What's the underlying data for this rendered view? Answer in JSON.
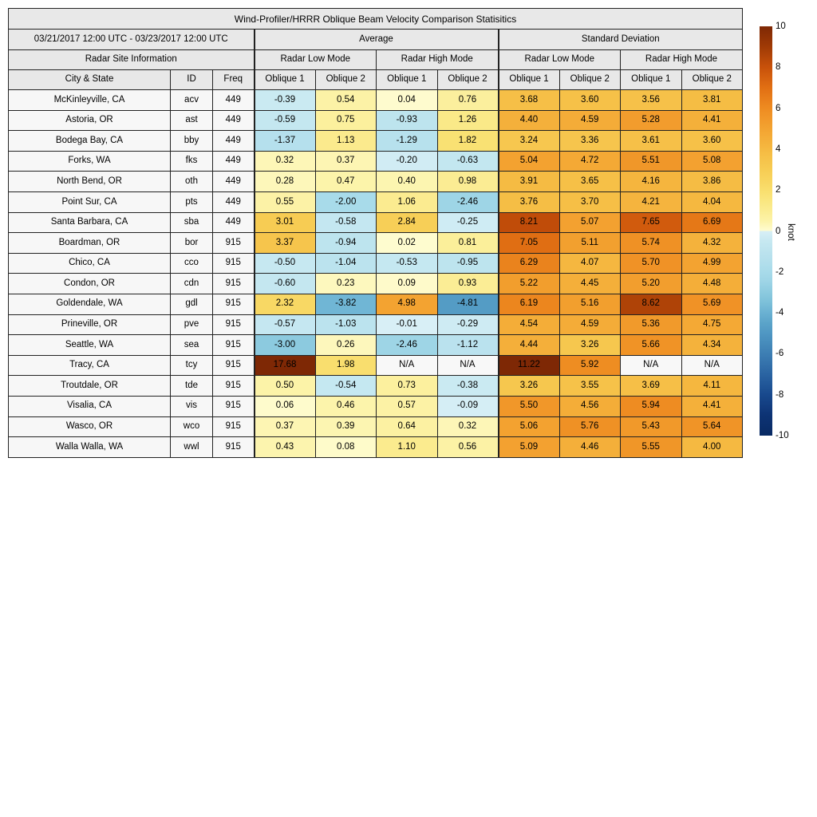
{
  "figure": {
    "title": "Wind-Profiler/HRRR Oblique Beam Velocity Comparison Statisitics",
    "date_range": "03/21/2017 12:00 UTC - 03/23/2017 12:00 UTC",
    "group_headers": {
      "average": "Average",
      "std_dev": "Standard Deviation",
      "site_info": "Radar Site Information",
      "low_mode": "Radar Low Mode",
      "high_mode": "Radar High Mode"
    },
    "column_headers": {
      "city": "City & State",
      "id": "ID",
      "freq": "Freq",
      "oblique1": "Oblique 1",
      "oblique2": "Oblique 2"
    }
  },
  "chart_data": {
    "type": "heatmap-table",
    "title": "Wind-Profiler/HRRR Oblique Beam Velocity Comparison Statisitics",
    "value_unit": "knot",
    "columns": [
      "Average Radar Low Mode Oblique 1",
      "Average Radar Low Mode Oblique 2",
      "Average Radar High Mode Oblique 1",
      "Average Radar High Mode Oblique 2",
      "Std Dev Radar Low Mode Oblique 1",
      "Std Dev Radar Low Mode Oblique 2",
      "Std Dev Radar High Mode Oblique 1",
      "Std Dev Radar High Mode Oblique 2"
    ],
    "na_label": "N/A",
    "rows": [
      {
        "city": "McKinleyville, CA",
        "id": "acv",
        "freq": "449",
        "values": [
          "-0.39",
          "0.54",
          "0.04",
          "0.76",
          "3.68",
          "3.60",
          "3.56",
          "3.81"
        ]
      },
      {
        "city": "Astoria, OR",
        "id": "ast",
        "freq": "449",
        "values": [
          "-0.59",
          "0.75",
          "-0.93",
          "1.26",
          "4.40",
          "4.59",
          "5.28",
          "4.41"
        ]
      },
      {
        "city": "Bodega Bay, CA",
        "id": "bby",
        "freq": "449",
        "values": [
          "-1.37",
          "1.13",
          "-1.29",
          "1.82",
          "3.24",
          "3.36",
          "3.61",
          "3.60"
        ]
      },
      {
        "city": "Forks, WA",
        "id": "fks",
        "freq": "449",
        "values": [
          "0.32",
          "0.37",
          "-0.20",
          "-0.63",
          "5.04",
          "4.72",
          "5.51",
          "5.08"
        ]
      },
      {
        "city": "North Bend, OR",
        "id": "oth",
        "freq": "449",
        "values": [
          "0.28",
          "0.47",
          "0.40",
          "0.98",
          "3.91",
          "3.65",
          "4.16",
          "3.86"
        ]
      },
      {
        "city": "Point Sur, CA",
        "id": "pts",
        "freq": "449",
        "values": [
          "0.55",
          "-2.00",
          "1.06",
          "-2.46",
          "3.76",
          "3.70",
          "4.21",
          "4.04"
        ]
      },
      {
        "city": "Santa Barbara, CA",
        "id": "sba",
        "freq": "449",
        "values": [
          "3.01",
          "-0.58",
          "2.84",
          "-0.25",
          "8.21",
          "5.07",
          "7.65",
          "6.69"
        ]
      },
      {
        "city": "Boardman, OR",
        "id": "bor",
        "freq": "915",
        "values": [
          "3.37",
          "-0.94",
          "0.02",
          "0.81",
          "7.05",
          "5.11",
          "5.74",
          "4.32"
        ]
      },
      {
        "city": "Chico, CA",
        "id": "cco",
        "freq": "915",
        "values": [
          "-0.50",
          "-1.04",
          "-0.53",
          "-0.95",
          "6.29",
          "4.07",
          "5.70",
          "4.99"
        ]
      },
      {
        "city": "Condon, OR",
        "id": "cdn",
        "freq": "915",
        "values": [
          "-0.60",
          "0.23",
          "0.09",
          "0.93",
          "5.22",
          "4.45",
          "5.20",
          "4.48"
        ]
      },
      {
        "city": "Goldendale, WA",
        "id": "gdl",
        "freq": "915",
        "values": [
          "2.32",
          "-3.82",
          "4.98",
          "-4.81",
          "6.19",
          "5.16",
          "8.62",
          "5.69"
        ]
      },
      {
        "city": "Prineville, OR",
        "id": "pve",
        "freq": "915",
        "values": [
          "-0.57",
          "-1.03",
          "-0.01",
          "-0.29",
          "4.54",
          "4.59",
          "5.36",
          "4.75"
        ]
      },
      {
        "city": "Seattle, WA",
        "id": "sea",
        "freq": "915",
        "values": [
          "-3.00",
          "0.26",
          "-2.46",
          "-1.12",
          "4.44",
          "3.26",
          "5.66",
          "4.34"
        ]
      },
      {
        "city": "Tracy, CA",
        "id": "tcy",
        "freq": "915",
        "values": [
          "17.68",
          "1.98",
          "N/A",
          "N/A",
          "11.22",
          "5.92",
          "N/A",
          "N/A"
        ]
      },
      {
        "city": "Troutdale, OR",
        "id": "tde",
        "freq": "915",
        "values": [
          "0.50",
          "-0.54",
          "0.73",
          "-0.38",
          "3.26",
          "3.55",
          "3.69",
          "4.11"
        ]
      },
      {
        "city": "Visalia, CA",
        "id": "vis",
        "freq": "915",
        "values": [
          "0.06",
          "0.46",
          "0.57",
          "-0.09",
          "5.50",
          "4.56",
          "5.94",
          "4.41"
        ]
      },
      {
        "city": "Wasco, OR",
        "id": "wco",
        "freq": "915",
        "values": [
          "0.37",
          "0.39",
          "0.64",
          "0.32",
          "5.06",
          "5.76",
          "5.43",
          "5.64"
        ]
      },
      {
        "city": "Walla Walla, WA",
        "id": "wwl",
        "freq": "915",
        "values": [
          "0.43",
          "0.08",
          "1.10",
          "0.56",
          "5.09",
          "4.46",
          "5.55",
          "4.00"
        ]
      }
    ],
    "colorbar": {
      "label": "knot",
      "ticks": [
        "10",
        "8",
        "6",
        "4",
        "2",
        "0",
        "-2",
        "-4",
        "-6",
        "-8",
        "-10"
      ],
      "range": [
        -10,
        10
      ]
    }
  },
  "colormap": {
    "na": "#f8f8f8",
    "positive": [
      [
        0,
        "#fefcd1"
      ],
      [
        0.5,
        "#fcf3a8"
      ],
      [
        1,
        "#fbec92"
      ],
      [
        1.5,
        "#fae67f"
      ],
      [
        2,
        "#f9de6d"
      ],
      [
        2.5,
        "#f8d55f"
      ],
      [
        3,
        "#f7cc53"
      ],
      [
        4,
        "#f5b941"
      ],
      [
        5,
        "#f3a331"
      ],
      [
        6,
        "#ee8b21"
      ],
      [
        7,
        "#e16f13"
      ],
      [
        8,
        "#c8510a"
      ],
      [
        9,
        "#a03a05"
      ],
      [
        10,
        "#7e2805"
      ]
    ],
    "negative": [
      [
        0,
        "#d8eff6"
      ],
      [
        0.5,
        "#c6e8f1"
      ],
      [
        1,
        "#bce3ee"
      ],
      [
        1.5,
        "#b3dfec"
      ],
      [
        2,
        "#a8dbea"
      ],
      [
        2.5,
        "#9dd4e6"
      ],
      [
        3,
        "#8ccadf"
      ],
      [
        3.5,
        "#7cc0d9"
      ],
      [
        4,
        "#6ab1d2"
      ],
      [
        4.5,
        "#5ba4c9"
      ],
      [
        5,
        "#4f97c3"
      ],
      [
        6,
        "#3d7eb3"
      ],
      [
        7,
        "#2a64a2"
      ],
      [
        8,
        "#18498d"
      ],
      [
        9,
        "#0d3374"
      ],
      [
        10,
        "#082a63"
      ]
    ]
  }
}
